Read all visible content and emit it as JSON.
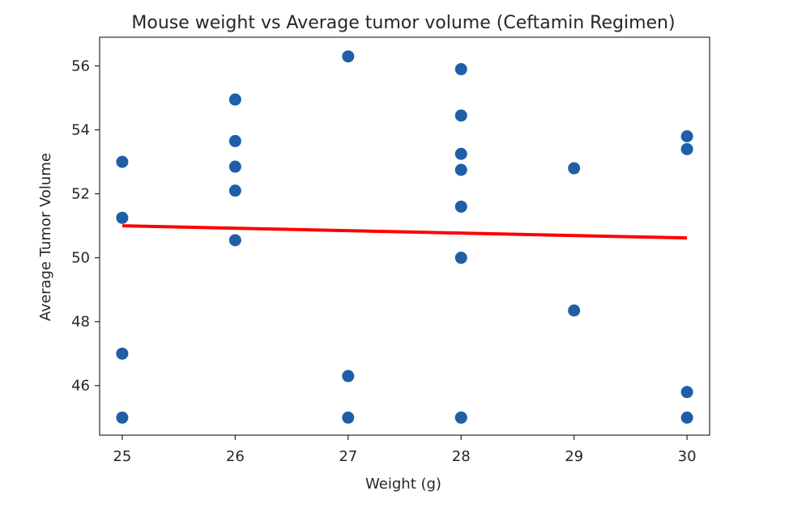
{
  "chart_data": {
    "type": "scatter",
    "title": "Mouse weight vs Average tumor volume (Ceftamin Regimen)",
    "xlabel": "Weight (g)",
    "ylabel": "Average Tumor Volume",
    "xlim": [
      24.8,
      30.2
    ],
    "ylim": [
      44.45,
      56.9
    ],
    "xticks": [
      25,
      26,
      27,
      28,
      29,
      30
    ],
    "yticks": [
      46,
      48,
      50,
      52,
      54,
      56
    ],
    "grid": false,
    "colors": {
      "points": "#1f5fa6",
      "regression": "#ff0000"
    },
    "series": [
      {
        "x": [
          25,
          25,
          25,
          25,
          26,
          26,
          26,
          26,
          26,
          27,
          27,
          27,
          28,
          28,
          28,
          28,
          28,
          28,
          28,
          28,
          29,
          29,
          30,
          30,
          30,
          30
        ],
        "y": [
          53.0,
          51.25,
          47.0,
          45.0,
          54.95,
          53.65,
          52.85,
          52.1,
          50.55,
          56.3,
          46.3,
          45.0,
          55.9,
          54.45,
          53.25,
          52.75,
          51.6,
          50.0,
          45.0,
          45.0,
          52.8,
          48.35,
          53.8,
          53.4,
          45.8,
          45.0
        ]
      }
    ],
    "regression_line": {
      "x": [
        25,
        30
      ],
      "y": [
        51.0,
        50.62
      ]
    }
  }
}
